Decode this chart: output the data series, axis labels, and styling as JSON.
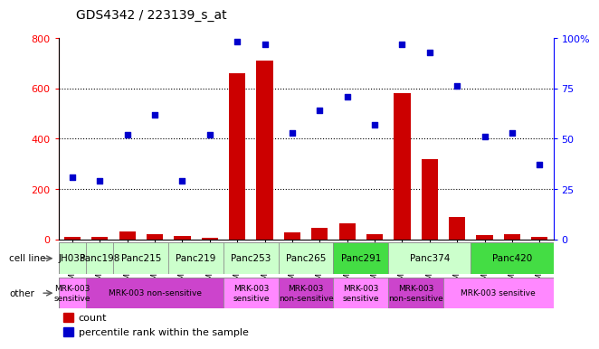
{
  "title": "GDS4342 / 223139_s_at",
  "gsm_labels": [
    "GSM924986",
    "GSM924992",
    "GSM924987",
    "GSM924995",
    "GSM924985",
    "GSM924991",
    "GSM924989",
    "GSM924990",
    "GSM924979",
    "GSM924982",
    "GSM924978",
    "GSM924994",
    "GSM924980",
    "GSM924983",
    "GSM924981",
    "GSM924984",
    "GSM924988",
    "GSM924993"
  ],
  "bar_counts": [
    10,
    8,
    30,
    20,
    12,
    5,
    660,
    710,
    28,
    45,
    65,
    22,
    580,
    320,
    88,
    15,
    20,
    10
  ],
  "percentile_ranks": [
    31,
    29,
    52,
    62,
    29,
    52,
    98,
    97,
    53,
    64,
    71,
    57,
    97,
    93,
    76,
    51,
    53,
    37
  ],
  "cell_lines": [
    {
      "name": "JH033",
      "start": 0,
      "end": 1,
      "color": "#ccffcc"
    },
    {
      "name": "Panc198",
      "start": 1,
      "end": 2,
      "color": "#ccffcc"
    },
    {
      "name": "Panc215",
      "start": 2,
      "end": 4,
      "color": "#ccffcc"
    },
    {
      "name": "Panc219",
      "start": 4,
      "end": 6,
      "color": "#ccffcc"
    },
    {
      "name": "Panc253",
      "start": 6,
      "end": 8,
      "color": "#ccffcc"
    },
    {
      "name": "Panc265",
      "start": 8,
      "end": 10,
      "color": "#ccffcc"
    },
    {
      "name": "Panc291",
      "start": 10,
      "end": 12,
      "color": "#44dd44"
    },
    {
      "name": "Panc374",
      "start": 12,
      "end": 15,
      "color": "#ccffcc"
    },
    {
      "name": "Panc420",
      "start": 15,
      "end": 18,
      "color": "#44dd44"
    }
  ],
  "other_groups": [
    {
      "name": "MRK-003\nsensitive",
      "start": 0,
      "end": 1,
      "color": "#ff88ff"
    },
    {
      "name": "MRK-003 non-sensitive",
      "start": 1,
      "end": 6,
      "color": "#cc44cc"
    },
    {
      "name": "MRK-003\nsensitive",
      "start": 6,
      "end": 8,
      "color": "#ff88ff"
    },
    {
      "name": "MRK-003\nnon-sensitive",
      "start": 8,
      "end": 10,
      "color": "#cc44cc"
    },
    {
      "name": "MRK-003\nsensitive",
      "start": 10,
      "end": 12,
      "color": "#ff88ff"
    },
    {
      "name": "MRK-003\nnon-sensitive",
      "start": 12,
      "end": 14,
      "color": "#cc44cc"
    },
    {
      "name": "MRK-003 sensitive",
      "start": 14,
      "end": 18,
      "color": "#ff88ff"
    }
  ],
  "bar_color": "#cc0000",
  "scatter_color": "#0000cc",
  "ylim_left": [
    0,
    800
  ],
  "ylim_right": [
    0,
    100
  ],
  "yticks_left": [
    0,
    200,
    400,
    600,
    800
  ],
  "yticks_right": [
    0,
    25,
    50,
    75,
    100
  ],
  "ytick_labels_right": [
    "0",
    "25",
    "50",
    "75",
    "100%"
  ],
  "dotted_lines": [
    200,
    400,
    600
  ],
  "bg_color": "#ffffff"
}
